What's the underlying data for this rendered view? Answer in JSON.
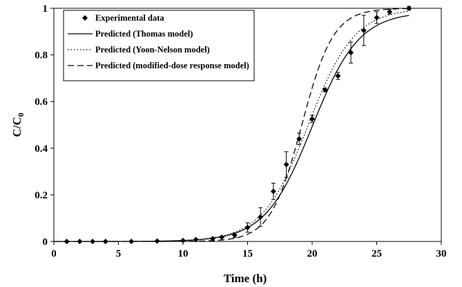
{
  "chart_data": {
    "type": "scatter",
    "xlabel": "Time (h)",
    "ylabel_main": "C/C",
    "ylabel_sub": "0",
    "xlim": [
      0,
      30
    ],
    "ylim": [
      0,
      1
    ],
    "xticks": [
      0,
      5,
      10,
      15,
      20,
      25,
      30
    ],
    "yticks": [
      0,
      0.2,
      0.4,
      0.6,
      0.8,
      1
    ],
    "ytick_labels": [
      "0",
      "0.2",
      "0.4",
      "0.6",
      "0.8",
      "1"
    ],
    "grid": false,
    "legend_position": "top-left",
    "experimental": {
      "name": "Experimental data",
      "x": [
        1,
        2,
        3,
        4,
        6,
        8,
        10,
        11,
        12.3,
        13,
        14,
        15,
        16,
        17,
        18,
        19,
        20,
        21,
        22,
        23,
        24,
        25,
        26,
        27.5
      ],
      "y": [
        0,
        0,
        0,
        0,
        0,
        0.002,
        0.004,
        0.008,
        0.012,
        0.018,
        0.027,
        0.06,
        0.105,
        0.215,
        0.33,
        0.44,
        0.525,
        0.65,
        0.71,
        0.81,
        0.905,
        0.96,
        0.985,
        1.0
      ],
      "err": [
        0,
        0,
        0,
        0,
        0,
        0,
        0,
        0,
        0,
        0,
        0.01,
        0.02,
        0.04,
        0.035,
        0.055,
        0.025,
        0.015,
        0.008,
        0.015,
        0.045,
        0.065,
        0.025,
        0.01,
        0.008
      ]
    },
    "models": [
      {
        "name": "Predicted (Thomas model)",
        "style": "solid",
        "t50": 20.0,
        "k": 0.55,
        "ymax": 0.985
      },
      {
        "name": "Predicted (Yoon-Nelson model)",
        "style": "dotted",
        "t50": 19.7,
        "k": 0.56,
        "ymax": 1.0
      },
      {
        "name": "Predicted (modified-dose response model)",
        "style": "dashed",
        "t50": 19.2,
        "k": 0.82,
        "ymax": 1.0
      }
    ]
  }
}
